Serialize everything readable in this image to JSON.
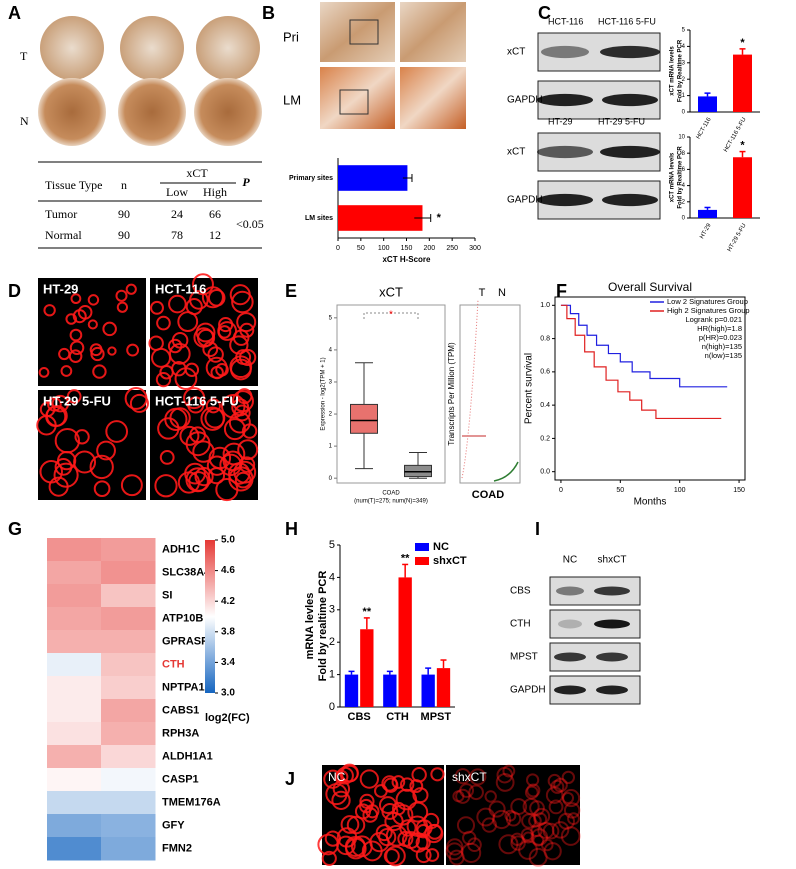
{
  "panel_labels": [
    "A",
    "B",
    "C",
    "D",
    "E",
    "F",
    "G",
    "H",
    "I",
    "J"
  ],
  "panel_a": {
    "row_labels": [
      "T",
      "N"
    ],
    "table": {
      "columns": [
        "Tissue Type",
        "n",
        "xCT",
        "P"
      ],
      "subcolumns": [
        "Low",
        "High"
      ],
      "rows": [
        [
          "Tumor",
          90,
          24,
          66
        ],
        [
          "Normal",
          90,
          78,
          12
        ]
      ],
      "p_value": "<0.05"
    }
  },
  "panel_b": {
    "image_labels": [
      "Pri",
      "LM"
    ]
  },
  "panel_c": {
    "blots": [
      {
        "lanes": [
          "HCT-116",
          "HCT-116 5-FU"
        ],
        "rows": [
          "xCT",
          "GAPDH"
        ]
      },
      {
        "lanes": [
          "HT-29",
          "HT-29 5-FU"
        ],
        "rows": [
          "xCT",
          "GAPDH"
        ]
      }
    ]
  },
  "panel_d": {
    "image_labels": [
      "HT-29",
      "HCT-116",
      "HT-29  5-FU",
      "HCT-116  5-FU"
    ]
  },
  "panel_e": {
    "groups": [
      "T",
      "N"
    ],
    "tpm_label": "Transcripts Per Million (TPM)",
    "dataset": "COAD"
  },
  "panel_i": {
    "lanes": [
      "NC",
      "shxCT"
    ],
    "rows": [
      "CBS",
      "CTH",
      "MPST",
      "GAPDH"
    ]
  },
  "panel_j": {
    "image_labels": [
      "NC",
      "shxCT"
    ]
  },
  "chart_data": [
    {
      "type": "bar",
      "orientation": "horizontal",
      "categories": [
        "Primary sites",
        "LM sites"
      ],
      "values": [
        152,
        185
      ],
      "errors": [
        10,
        18
      ],
      "colors": [
        "#0000ff",
        "#ff0000"
      ],
      "xlim": [
        0,
        300
      ],
      "xticks": [
        0,
        50,
        100,
        150,
        200,
        250,
        300
      ],
      "xlabel": "xCT H-Score",
      "annotations": [
        {
          "category": "LM sites",
          "text": "*"
        }
      ]
    },
    {
      "type": "bar",
      "categories": [
        "HCT-116",
        "HCT-116 5-FU"
      ],
      "values": [
        0.95,
        3.5
      ],
      "errors": [
        0.2,
        0.35
      ],
      "colors": [
        "#0000ff",
        "#ff0000"
      ],
      "ylim": [
        0,
        5
      ],
      "yticks": [
        0,
        1,
        2,
        3,
        4,
        5
      ],
      "ylabel": [
        "xCT mRNA levels",
        "Fold by Realtime PCR"
      ],
      "annotations": [
        {
          "category": "HCT-116 5-FU",
          "text": "*"
        }
      ]
    },
    {
      "type": "bar",
      "categories": [
        "HT-29",
        "HT-29 5-FU"
      ],
      "values": [
        1.0,
        7.5
      ],
      "errors": [
        0.3,
        0.7
      ],
      "colors": [
        "#0000ff",
        "#ff0000"
      ],
      "ylim": [
        0,
        10
      ],
      "yticks": [
        0,
        2,
        4,
        6,
        8,
        10
      ],
      "ylabel": [
        "xCT mRNA levels",
        "Fold by Realtime PCR"
      ],
      "annotations": [
        {
          "category": "HT-29 5-FU",
          "text": "*"
        }
      ]
    },
    {
      "type": "box",
      "title": "xCT",
      "ylabel": "Expression - log2(TPM + 1)",
      "xlabel": "COAD",
      "subtitle": "(num(T)=275; num(N)=349)",
      "ylim": [
        -0.15,
        5.4
      ],
      "yticks": [
        0,
        1,
        2,
        3,
        4,
        5
      ],
      "boxes": [
        {
          "color": "#e8726e",
          "whisker_low": 0.3,
          "q1": 1.4,
          "median": 1.8,
          "q3": 2.3,
          "whisker_high": 3.6
        },
        {
          "color": "#8c8c8c",
          "whisker_low": 0,
          "q1": 0.05,
          "median": 0.2,
          "q3": 0.4,
          "whisker_high": 0.8
        }
      ],
      "annotation": "*",
      "annotation_color": "#ff0000"
    },
    {
      "type": "line",
      "title": "Overall Survival",
      "xlabel": "Months",
      "ylabel": "Percent survival",
      "xlim": [
        -5,
        155
      ],
      "ylim": [
        -0.05,
        1.05
      ],
      "xticks": [
        0,
        50,
        100,
        150
      ],
      "yticks": [
        {
          "value": 0,
          "label": "0.0"
        },
        0.2,
        0.4,
        0.6,
        0.8,
        {
          "value": 1,
          "label": "1.0"
        }
      ],
      "legend": "upper right",
      "stats": [
        "Logrank p=0.021",
        "HR(high)=1.8",
        "p(HR)=0.023",
        "n(high)=135",
        "n(low)=135"
      ],
      "series": [
        {
          "name": "Low 2 Signatures Group",
          "color": "#2020e0",
          "x": [
            0,
            8,
            8,
            15,
            15,
            22,
            22,
            30,
            30,
            40,
            40,
            50,
            50,
            60,
            60,
            75,
            75,
            100,
            100,
            140
          ],
          "y": [
            1,
            1,
            0.95,
            0.95,
            0.88,
            0.88,
            0.82,
            0.82,
            0.76,
            0.76,
            0.71,
            0.71,
            0.66,
            0.66,
            0.6,
            0.6,
            0.56,
            0.56,
            0.51,
            0.51
          ]
        },
        {
          "name": "High 2 Signatures Group",
          "color": "#e02020",
          "x": [
            0,
            5,
            5,
            12,
            12,
            20,
            20,
            28,
            28,
            38,
            38,
            48,
            48,
            58,
            58,
            68,
            68,
            80,
            80,
            135
          ],
          "y": [
            1,
            1,
            0.92,
            0.92,
            0.82,
            0.82,
            0.72,
            0.72,
            0.63,
            0.63,
            0.55,
            0.55,
            0.48,
            0.48,
            0.43,
            0.43,
            0.37,
            0.37,
            0.32,
            0.32
          ]
        }
      ]
    },
    {
      "type": "heatmap",
      "rows": [
        "ADH1C",
        "SLC38A4",
        "SI",
        "ATP10B",
        "GPRASP2",
        "CTH",
        "NPTPA1",
        "CABS1",
        "RPH3A",
        "ALDH1A1",
        "CASP1",
        "TMEM176A",
        "GFY",
        "FMN2"
      ],
      "values": [
        [
          4.55,
          4.5
        ],
        [
          4.45,
          4.55
        ],
        [
          4.5,
          4.3
        ],
        [
          4.45,
          4.5
        ],
        [
          4.4,
          4.4
        ],
        [
          3.9,
          4.3
        ],
        [
          4.1,
          4.25
        ],
        [
          4.1,
          4.45
        ],
        [
          4.15,
          4.4
        ],
        [
          4.4,
          4.2
        ],
        [
          4.05,
          3.95
        ],
        [
          3.75,
          3.75
        ],
        [
          3.45,
          3.5
        ],
        [
          3.25,
          3.45
        ]
      ],
      "clim": [
        3,
        5
      ],
      "colormap": [
        "#1565c0",
        "#ffffff",
        "#e53935"
      ],
      "colorbar_ticks": [
        {
          "value": 5,
          "label": "5.0"
        },
        4.6,
        4.2,
        3.8,
        3.4,
        {
          "value": 3,
          "label": "3.0"
        }
      ],
      "colorbar_label": "log2(FC)",
      "highlight_row": "CTH",
      "highlight_color": "#e53935"
    },
    {
      "type": "bar",
      "categories": [
        "CBS",
        "CTH",
        "MPST"
      ],
      "series": [
        {
          "name": "NC",
          "color": "#0000ff",
          "values": [
            1,
            1,
            1
          ],
          "errors": [
            0.1,
            0.1,
            0.2
          ]
        },
        {
          "name": "shxCT",
          "color": "#ff0000",
          "values": [
            2.4,
            4.0,
            1.2
          ],
          "errors": [
            0.35,
            0.4,
            0.25
          ]
        }
      ],
      "ylim": [
        0,
        5
      ],
      "yticks": [
        0,
        1,
        2,
        3,
        4,
        5
      ],
      "ylabel": [
        "mRNA levles",
        "Fold by realtime PCR"
      ],
      "legend": "upper right",
      "annotations": [
        {
          "category": "CBS",
          "text": "**"
        },
        {
          "category": "CTH",
          "text": "**"
        }
      ]
    }
  ]
}
